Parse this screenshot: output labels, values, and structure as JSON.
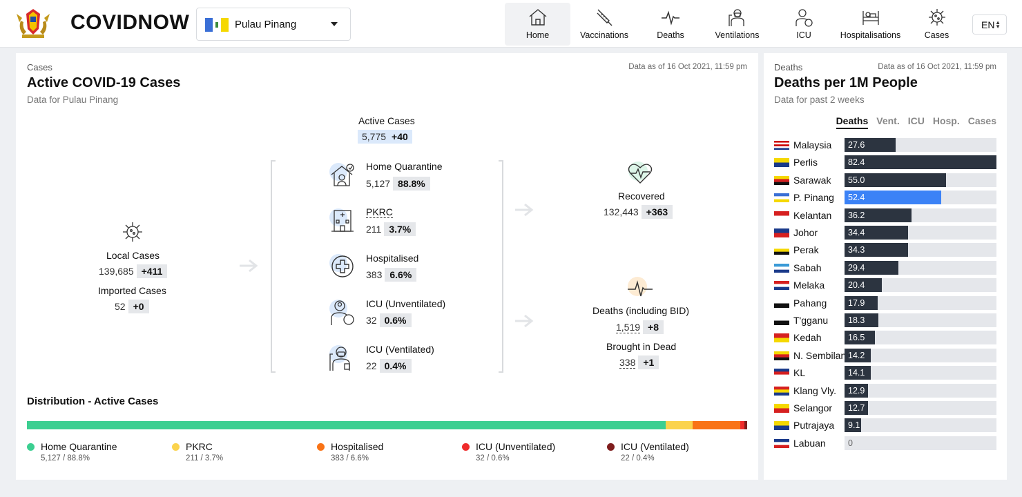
{
  "brand": "COVIDNOW",
  "state_selector": {
    "selected": "Pulau Pinang"
  },
  "nav": [
    {
      "label": "Home",
      "icon": "home-icon"
    },
    {
      "label": "Vaccinations",
      "icon": "syringe-icon"
    },
    {
      "label": "Deaths",
      "icon": "pulse-icon"
    },
    {
      "label": "Ventilations",
      "icon": "ventilation-icon"
    },
    {
      "label": "ICU",
      "icon": "icu-icon"
    },
    {
      "label": "Hospitalisations",
      "icon": "hospital-bed-icon"
    },
    {
      "label": "Cases",
      "icon": "virus-icon"
    }
  ],
  "language": "EN",
  "cases_panel": {
    "tag": "Cases",
    "title": "Active COVID-19 Cases",
    "subtitle": "Data for Pulau Pinang",
    "as_of": "Data as of 16 Oct 2021, 11:59 pm",
    "local": {
      "label": "Local Cases",
      "value": "139,685",
      "delta": "+411"
    },
    "imported": {
      "label": "Imported Cases",
      "value": "52",
      "delta": "+0"
    },
    "active": {
      "label": "Active Cases",
      "value": "5,775",
      "delta": "+40"
    },
    "breakdown": [
      {
        "label": "Home Quarantine",
        "value": "5,127",
        "pct": "88.8%"
      },
      {
        "label": "PKRC",
        "value": "211",
        "pct": "3.7%"
      },
      {
        "label": "Hospitalised",
        "value": "383",
        "pct": "6.6%"
      },
      {
        "label": "ICU (Unventilated)",
        "value": "32",
        "pct": "0.6%"
      },
      {
        "label": "ICU (Ventilated)",
        "value": "22",
        "pct": "0.4%"
      }
    ],
    "recovered": {
      "label": "Recovered",
      "value": "132,443",
      "delta": "+363"
    },
    "deaths": {
      "label": "Deaths (including BID)",
      "value": "1,519",
      "delta": "+8"
    },
    "bid": {
      "label": "Brought in Dead",
      "value": "338",
      "delta": "+1"
    },
    "distribution": {
      "title": "Distribution - Active Cases",
      "segments": [
        {
          "name": "Home Quarantine",
          "detail": "5,127 / 88.8%",
          "share": 88.8,
          "color": "#3ccf91"
        },
        {
          "name": "PKRC",
          "detail": "211 / 3.7%",
          "share": 3.7,
          "color": "#fbd34d"
        },
        {
          "name": "Hospitalised",
          "detail": "383 / 6.6%",
          "share": 6.6,
          "color": "#f97316"
        },
        {
          "name": "ICU (Unventilated)",
          "detail": "32 / 0.6%",
          "share": 0.6,
          "color": "#ef2b2b"
        },
        {
          "name": "ICU (Ventilated)",
          "detail": "22 / 0.4%",
          "share": 0.4,
          "color": "#7f1d1d"
        }
      ]
    }
  },
  "deaths_panel": {
    "tag": "Deaths",
    "as_of": "Data as of 16 Oct 2021, 11:59 pm",
    "title": "Deaths per 1M People",
    "subtitle": "Data for past 2 weeks",
    "tabs": [
      "Deaths",
      "Vent.",
      "ICU",
      "Hosp.",
      "Cases"
    ],
    "max_value": 82.4,
    "highlight_color": "#3b82f6",
    "rows": [
      {
        "state": "Malaysia",
        "value": 27.6,
        "label": "27.6"
      },
      {
        "state": "Perlis",
        "value": 82.4,
        "label": "82.4"
      },
      {
        "state": "Sarawak",
        "value": 55.0,
        "label": "55.0"
      },
      {
        "state": "P. Pinang",
        "value": 52.4,
        "label": "52.4",
        "highlight": true
      },
      {
        "state": "Kelantan",
        "value": 36.2,
        "label": "36.2"
      },
      {
        "state": "Johor",
        "value": 34.4,
        "label": "34.4"
      },
      {
        "state": "Perak",
        "value": 34.3,
        "label": "34.3"
      },
      {
        "state": "Sabah",
        "value": 29.4,
        "label": "29.4"
      },
      {
        "state": "Melaka",
        "value": 20.4,
        "label": "20.4"
      },
      {
        "state": "Pahang",
        "value": 17.9,
        "label": "17.9"
      },
      {
        "state": "T'gganu",
        "value": 18.3,
        "label": "18.3"
      },
      {
        "state": "Kedah",
        "value": 16.5,
        "label": "16.5"
      },
      {
        "state": "N. Sembilan",
        "value": 14.2,
        "label": "14.2"
      },
      {
        "state": "KL",
        "value": 14.1,
        "label": "14.1"
      },
      {
        "state": "Klang Vly.",
        "value": 12.9,
        "label": "12.9"
      },
      {
        "state": "Selangor",
        "value": 12.7,
        "label": "12.7"
      },
      {
        "state": "Putrajaya",
        "value": 9.1,
        "label": "9.1"
      },
      {
        "state": "Labuan",
        "value": 0,
        "label": "0"
      }
    ]
  }
}
